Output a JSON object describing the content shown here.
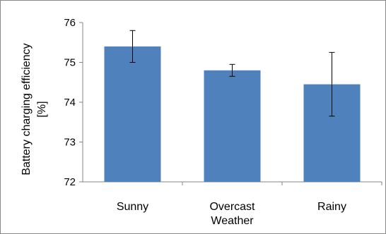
{
  "chart_data": {
    "type": "bar",
    "title": "",
    "xlabel": "",
    "ylabel_lines": [
      "Battery charging efficiency",
      "[%]"
    ],
    "categories": [
      {
        "lines": [
          "Sunny"
        ]
      },
      {
        "lines": [
          "Overcast",
          "Weather"
        ]
      },
      {
        "lines": [
          "Rainy"
        ]
      }
    ],
    "values": [
      75.4,
      74.8,
      74.45
    ],
    "errors": [
      0.4,
      0.15,
      0.8
    ],
    "ylim": [
      72,
      76
    ],
    "yticks": [
      72,
      73,
      74,
      75,
      76
    ],
    "grid": false,
    "legend": "none",
    "colors": {
      "bar": "#4f81bd",
      "error_bar": "#000000",
      "axis": "#868686"
    }
  }
}
